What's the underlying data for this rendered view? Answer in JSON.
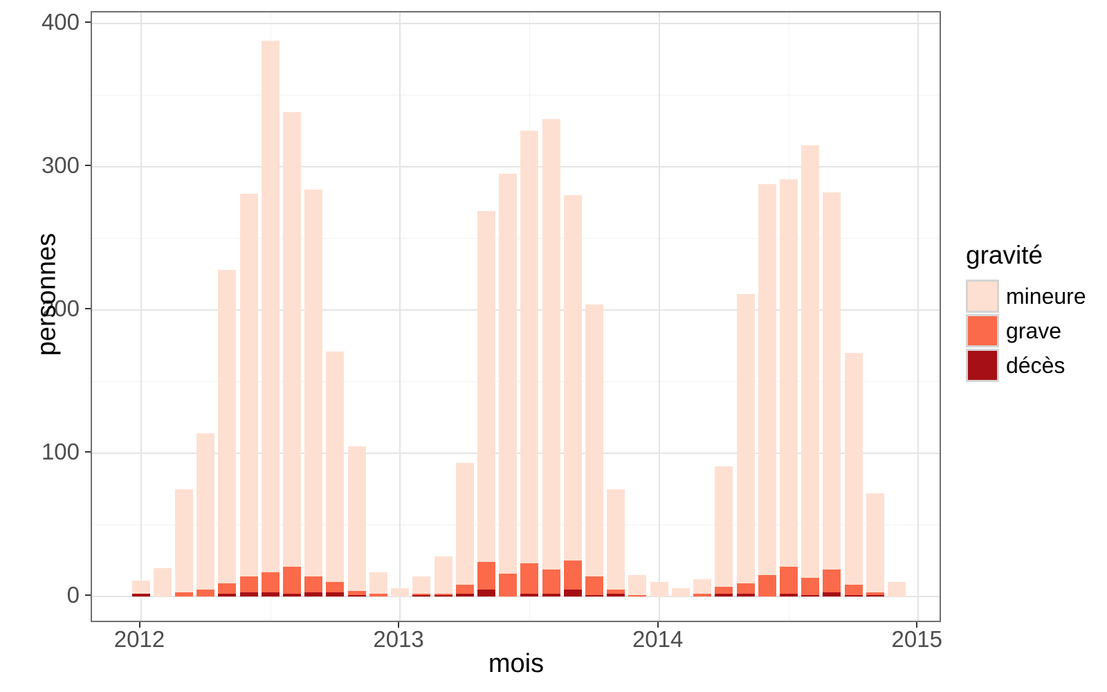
{
  "chart_data": {
    "type": "bar",
    "stacked": true,
    "title": "",
    "xlabel": "mois",
    "ylabel": "personnes",
    "x_tick_labels": [
      "2012",
      "2013",
      "2014",
      "2015"
    ],
    "y_ticks": [
      "0",
      "100",
      "200",
      "300",
      "400"
    ],
    "y_tick_values": [
      0,
      100,
      200,
      300,
      400
    ],
    "ylim": [
      0,
      400
    ],
    "grid": {
      "major_color": "#e4e4e4",
      "minor_color": "#f2f2f2",
      "minor_y_values": [
        50,
        150,
        250,
        350
      ]
    },
    "months": [
      "2012-01",
      "2012-02",
      "2012-03",
      "2012-04",
      "2012-05",
      "2012-06",
      "2012-07",
      "2012-08",
      "2012-09",
      "2012-10",
      "2012-11",
      "2012-12",
      "2013-01",
      "2013-02",
      "2013-03",
      "2013-04",
      "2013-05",
      "2013-06",
      "2013-07",
      "2013-08",
      "2013-09",
      "2013-10",
      "2013-11",
      "2013-12",
      "2014-01",
      "2014-02",
      "2014-03",
      "2014-04",
      "2014-05",
      "2014-06",
      "2014-07",
      "2014-08",
      "2014-09",
      "2014-10",
      "2014-11",
      "2014-12"
    ],
    "series": [
      {
        "name": "décès",
        "color": "#a50f15",
        "values": [
          2,
          0,
          0,
          0,
          2,
          3,
          3,
          2,
          3,
          3,
          1,
          0,
          0,
          1,
          1,
          2,
          5,
          0,
          2,
          2,
          5,
          1,
          2,
          0,
          0,
          0,
          0,
          2,
          2,
          0,
          2,
          1,
          3,
          1,
          1,
          0
        ]
      },
      {
        "name": "grave",
        "color": "#fb6a4a",
        "values": [
          0,
          0,
          3,
          5,
          7,
          11,
          14,
          19,
          11,
          7,
          3,
          2,
          0,
          1,
          1,
          6,
          19,
          16,
          21,
          17,
          20,
          13,
          3,
          1,
          0,
          0,
          2,
          5,
          7,
          15,
          19,
          12,
          16,
          7,
          2,
          0
        ]
      },
      {
        "name": "mineure",
        "color": "#fee0d2",
        "values": [
          9,
          20,
          72,
          109,
          219,
          267,
          371,
          317,
          270,
          161,
          101,
          15,
          6,
          12,
          26,
          85,
          245,
          279,
          302,
          314,
          255,
          190,
          70,
          14,
          10,
          6,
          10,
          84,
          202,
          273,
          270,
          302,
          263,
          162,
          69,
          10
        ]
      }
    ],
    "totals": [
      11,
      20,
      75,
      114,
      228,
      281,
      388,
      338,
      284,
      171,
      105,
      17,
      6,
      14,
      28,
      93,
      269,
      295,
      325,
      333,
      280,
      204,
      75,
      15,
      10,
      6,
      12,
      91,
      211,
      288,
      291,
      315,
      282,
      170,
      72,
      10
    ],
    "legend": {
      "title": "gravité",
      "position": "right",
      "items": [
        {
          "label": "mineure",
          "color": "#fee0d2"
        },
        {
          "label": "grave",
          "color": "#fb6a4a"
        },
        {
          "label": "décès",
          "color": "#a50f15"
        }
      ]
    }
  }
}
